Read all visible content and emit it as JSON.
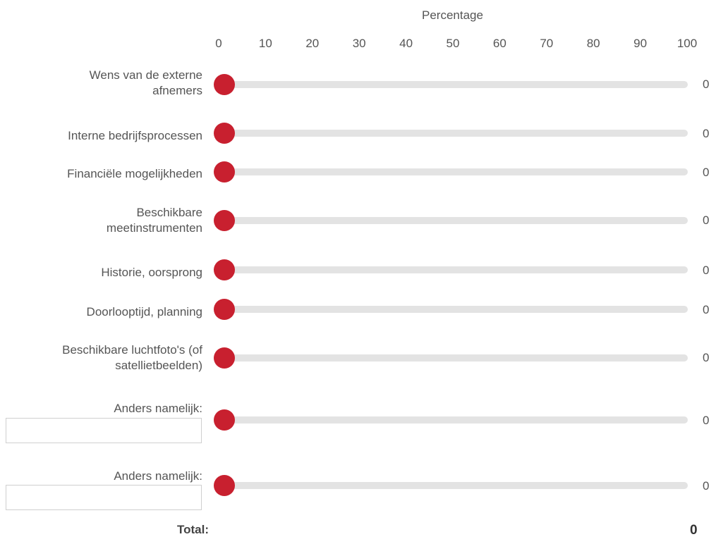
{
  "scale": {
    "title": "Percentage",
    "min": 0,
    "max": 100,
    "ticks": [
      "0",
      "10",
      "20",
      "30",
      "40",
      "50",
      "60",
      "70",
      "80",
      "90",
      "100"
    ]
  },
  "rows": [
    {
      "label_lines": [
        "Wens van de externe",
        "afnemers"
      ],
      "value": "0",
      "level": 0
    },
    {
      "label_lines": [
        "Interne bedrijfsprocessen"
      ],
      "value": "0",
      "level": 0
    },
    {
      "label_lines": [
        "Financiële mogelijkheden"
      ],
      "value": "0",
      "level": 0
    },
    {
      "label_lines": [
        "Beschikbare",
        "meetinstrumenten"
      ],
      "value": "0",
      "level": 0
    },
    {
      "label_lines": [
        "Historie, oorsprong"
      ],
      "value": "0",
      "level": 0
    },
    {
      "label_lines": [
        "Doorlooptijd, planning"
      ],
      "value": "0",
      "level": 0
    },
    {
      "label_lines": [
        "Beschikbare luchtfoto's (of",
        "satellietbeelden)"
      ],
      "value": "0",
      "level": 0
    },
    {
      "label_lines": [
        "Anders namelijk:"
      ],
      "value": "0",
      "level": 0,
      "input_value": ""
    },
    {
      "label_lines": [
        "Anders namelijk:"
      ],
      "value": "0",
      "level": 0,
      "input_value": ""
    }
  ],
  "total": {
    "label": "Total:",
    "value": "0"
  },
  "colors": {
    "thumb": "#c8202f",
    "track": "#e3e3e3"
  }
}
